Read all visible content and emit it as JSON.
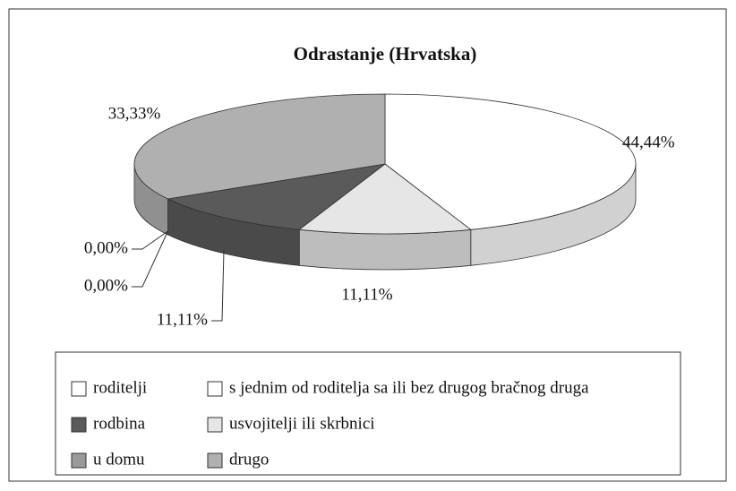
{
  "chart_data": {
    "type": "pie3d",
    "title": "Odrastanje (Hrvatska)",
    "categories": [
      "roditelji",
      "usvojitelji ili skrbnici",
      "rodbina",
      "s jednim od roditelja sa ili bez drugog bračnog druga",
      "u domu",
      "drugo"
    ],
    "values": [
      44.44,
      11.11,
      11.11,
      0,
      0,
      33.33
    ],
    "value_labels": [
      "44,44%",
      "11,11%",
      "11,11%",
      "0,00%",
      "0,00%",
      "33,33%"
    ],
    "colors": [
      "#ffffff",
      "#e6e6e6",
      "#5a5a5a",
      "#ffffff",
      "#9a9a9a",
      "#b0b0b0"
    ],
    "legend": "bottom"
  }
}
